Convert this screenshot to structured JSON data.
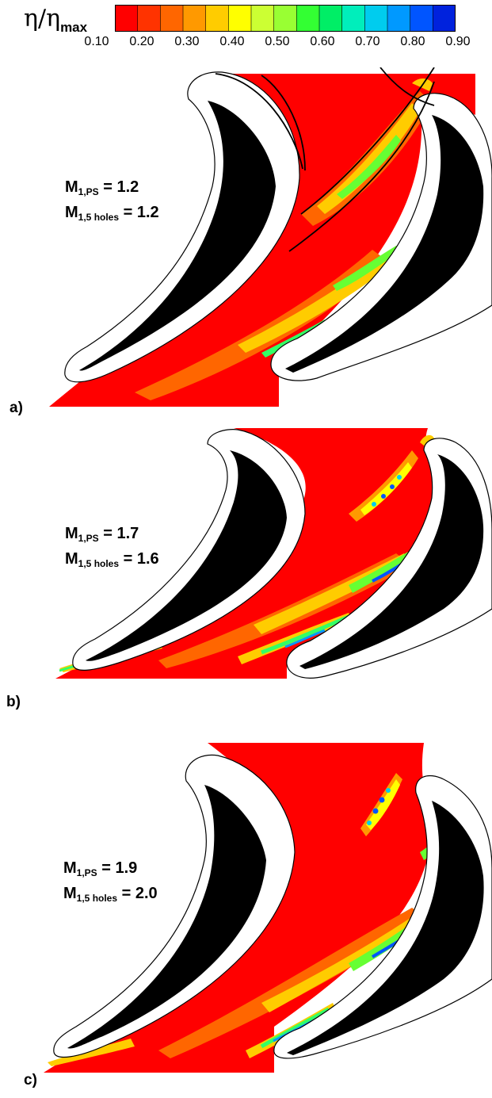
{
  "colorbar": {
    "symbol": "η/η",
    "symbol_sub": "max",
    "tick_labels": [
      "0.10",
      "0.20",
      "0.30",
      "0.40",
      "0.50",
      "0.60",
      "0.70",
      "0.80",
      "0.90"
    ],
    "colors": [
      "#ff0000",
      "#ff3300",
      "#ff6600",
      "#ff9900",
      "#ffcc00",
      "#ffff00",
      "#ccff33",
      "#99ff33",
      "#33ff33",
      "#00ee66",
      "#00eebb",
      "#00ccee",
      "#0099ff",
      "#0055ff",
      "#0022dd"
    ]
  },
  "panels": [
    {
      "label": "a)",
      "m_ps_sym": "M",
      "m_ps_sub": "1,PS",
      "m_ps_val": "= 1.2",
      "m_holes_sym": "M",
      "m_holes_sub": "1,5 holes",
      "m_holes_val": "= 1.2"
    },
    {
      "label": "b)",
      "m_ps_sym": "M",
      "m_ps_sub": "1,PS",
      "m_ps_val": "= 1.7",
      "m_holes_sym": "M",
      "m_holes_sub": "1,5 holes",
      "m_holes_val": "= 1.6"
    },
    {
      "label": "c)",
      "m_ps_sym": "M",
      "m_ps_sub": "1,PS",
      "m_ps_val": "= 1.9",
      "m_holes_sym": "M",
      "m_holes_sub": "1,5 holes",
      "m_holes_val": "= 2.0"
    }
  ]
}
